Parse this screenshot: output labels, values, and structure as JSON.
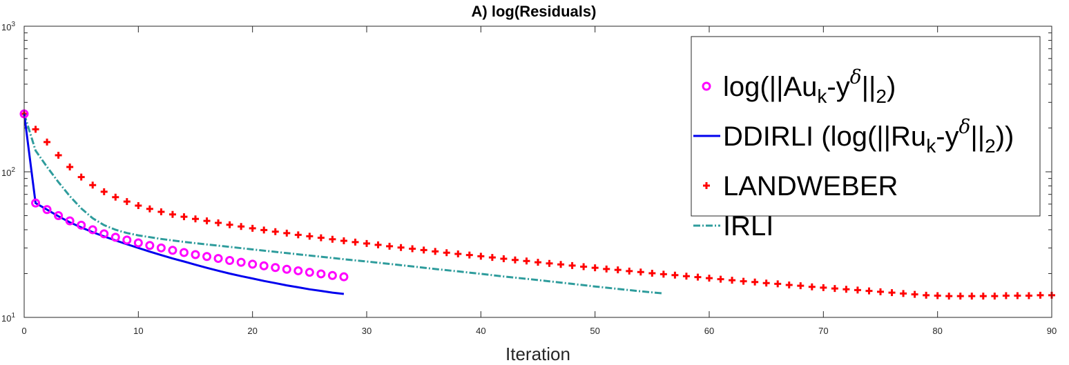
{
  "chart_data": {
    "type": "line",
    "title": "A) log(Residuals)",
    "xlabel": "Iteration",
    "ylabel": "",
    "yscale": "log",
    "xlim": [
      0,
      90
    ],
    "ylim": [
      10,
      1000
    ],
    "x_ticks": [
      "0",
      "10",
      "20",
      "30",
      "40",
      "50",
      "60",
      "70",
      "80",
      "90"
    ],
    "y_ticks": [
      {
        "base": "10",
        "exp": "1"
      },
      {
        "base": "10",
        "exp": "2"
      },
      {
        "base": "10",
        "exp": "3"
      }
    ],
    "legend_position": "top-right",
    "series": [
      {
        "name": "log(||Au_k-y^δ||_2)",
        "legend": {
          "pre": "log(||Au",
          "sub1": "k",
          "mid": "-y",
          "sup": "δ",
          "mid2": "||",
          "sub2": "2",
          "post": ")"
        },
        "marker": "circle",
        "color": "#ff00ff",
        "x": [
          0,
          1,
          2,
          3,
          4,
          5,
          6,
          7,
          8,
          9,
          10,
          11,
          12,
          13,
          14,
          15,
          16,
          17,
          18,
          19,
          20,
          21,
          22,
          23,
          24,
          25,
          26,
          27,
          28
        ],
        "values": [
          250,
          61,
          55,
          50,
          46,
          43,
          40,
          37.5,
          35.5,
          34,
          32.5,
          31.2,
          30,
          28.9,
          27.9,
          27,
          26.2,
          25.4,
          24.6,
          23.9,
          23.2,
          22.6,
          22,
          21.4,
          20.9,
          20.4,
          19.9,
          19.4,
          19
        ]
      },
      {
        "name": "DDIRLI (log(||Ru_k-y^δ||_2))",
        "legend": {
          "pre": "DDIRLI (log(||Ru",
          "sub1": "k",
          "mid": "-y",
          "sup": "δ",
          "mid2": "||",
          "sub2": "2",
          "post": "))"
        },
        "line": "solid",
        "color": "#0000ee",
        "x": [
          0,
          1,
          2,
          3,
          4,
          5,
          6,
          7,
          8,
          9,
          10,
          11,
          12,
          13,
          14,
          15,
          16,
          17,
          18,
          19,
          20,
          21,
          22,
          23,
          24,
          25,
          26,
          27,
          28
        ],
        "values": [
          250,
          61,
          55,
          49.5,
          45,
          41.5,
          38.5,
          36,
          33.8,
          31.8,
          30,
          28.3,
          26.8,
          25.4,
          24.2,
          23,
          21.9,
          20.9,
          20,
          19.2,
          18.5,
          17.8,
          17.2,
          16.6,
          16.1,
          15.6,
          15.2,
          14.8,
          14.5
        ]
      },
      {
        "name": "LANDWEBER",
        "legend": {
          "text": "LANDWEBER"
        },
        "marker": "plus",
        "color": "#ff0000",
        "x": [
          0,
          1,
          2,
          3,
          4,
          5,
          6,
          7,
          8,
          9,
          10,
          11,
          12,
          13,
          14,
          15,
          16,
          17,
          18,
          19,
          20,
          21,
          22,
          23,
          24,
          25,
          26,
          27,
          28,
          29,
          30,
          31,
          32,
          33,
          34,
          35,
          36,
          37,
          38,
          39,
          40,
          41,
          42,
          43,
          44,
          45,
          46,
          47,
          48,
          49,
          50,
          51,
          52,
          53,
          54,
          55,
          56,
          57,
          58,
          59,
          60,
          61,
          62,
          63,
          64,
          65,
          66,
          67,
          68,
          69,
          70,
          71,
          72,
          73,
          74,
          75,
          76,
          77,
          78,
          79,
          80,
          81,
          82,
          83,
          84,
          85,
          86,
          87,
          88,
          89,
          90
        ],
        "values": [
          250,
          196,
          160,
          130,
          108,
          92,
          81,
          73,
          67,
          62.5,
          58.6,
          55.6,
          53.1,
          51,
          49.1,
          47.5,
          46,
          44.6,
          43.3,
          42.1,
          40.9,
          39.8,
          38.8,
          37.9,
          36.9,
          36.1,
          35.2,
          34.4,
          33.6,
          32.9,
          32.2,
          31.5,
          30.8,
          30.2,
          29.6,
          29,
          28.4,
          27.8,
          27.3,
          26.8,
          26.3,
          25.8,
          25.3,
          24.8,
          24.4,
          23.9,
          23.5,
          23.1,
          22.7,
          22.3,
          21.9,
          21.5,
          21.2,
          20.8,
          20.5,
          20.1,
          19.8,
          19.5,
          19.2,
          18.9,
          18.6,
          18.3,
          18,
          17.7,
          17.5,
          17.2,
          17,
          16.7,
          16.5,
          16.2,
          16,
          15.8,
          15.6,
          15.4,
          15.2,
          15,
          14.8,
          14.6,
          14.4,
          14.2,
          14.1,
          14,
          14,
          14,
          14,
          14,
          14.1,
          14.1,
          14.1,
          14.2,
          14.2
        ]
      },
      {
        "name": "IRLI",
        "legend": {
          "text": "IRLI"
        },
        "line": "dashdot",
        "color": "#2e9c9c",
        "x": [
          0,
          1,
          2,
          3,
          4,
          5,
          6,
          7,
          8,
          9,
          10,
          12,
          14,
          16,
          18,
          20,
          22,
          24,
          26,
          28,
          30,
          32,
          34,
          36,
          38,
          40,
          42,
          44,
          46,
          48,
          50,
          52,
          54,
          56
        ],
        "values": [
          250,
          140,
          108,
          85,
          68,
          56,
          48,
          43,
          40,
          38,
          36.6,
          34.6,
          33,
          31.7,
          30.5,
          29.3,
          28.2,
          27.1,
          26.1,
          25.1,
          24.2,
          23.3,
          22.4,
          21.5,
          20.7,
          19.9,
          19.1,
          18.4,
          17.7,
          17,
          16.3,
          15.7,
          15.1,
          14.6
        ]
      }
    ]
  }
}
